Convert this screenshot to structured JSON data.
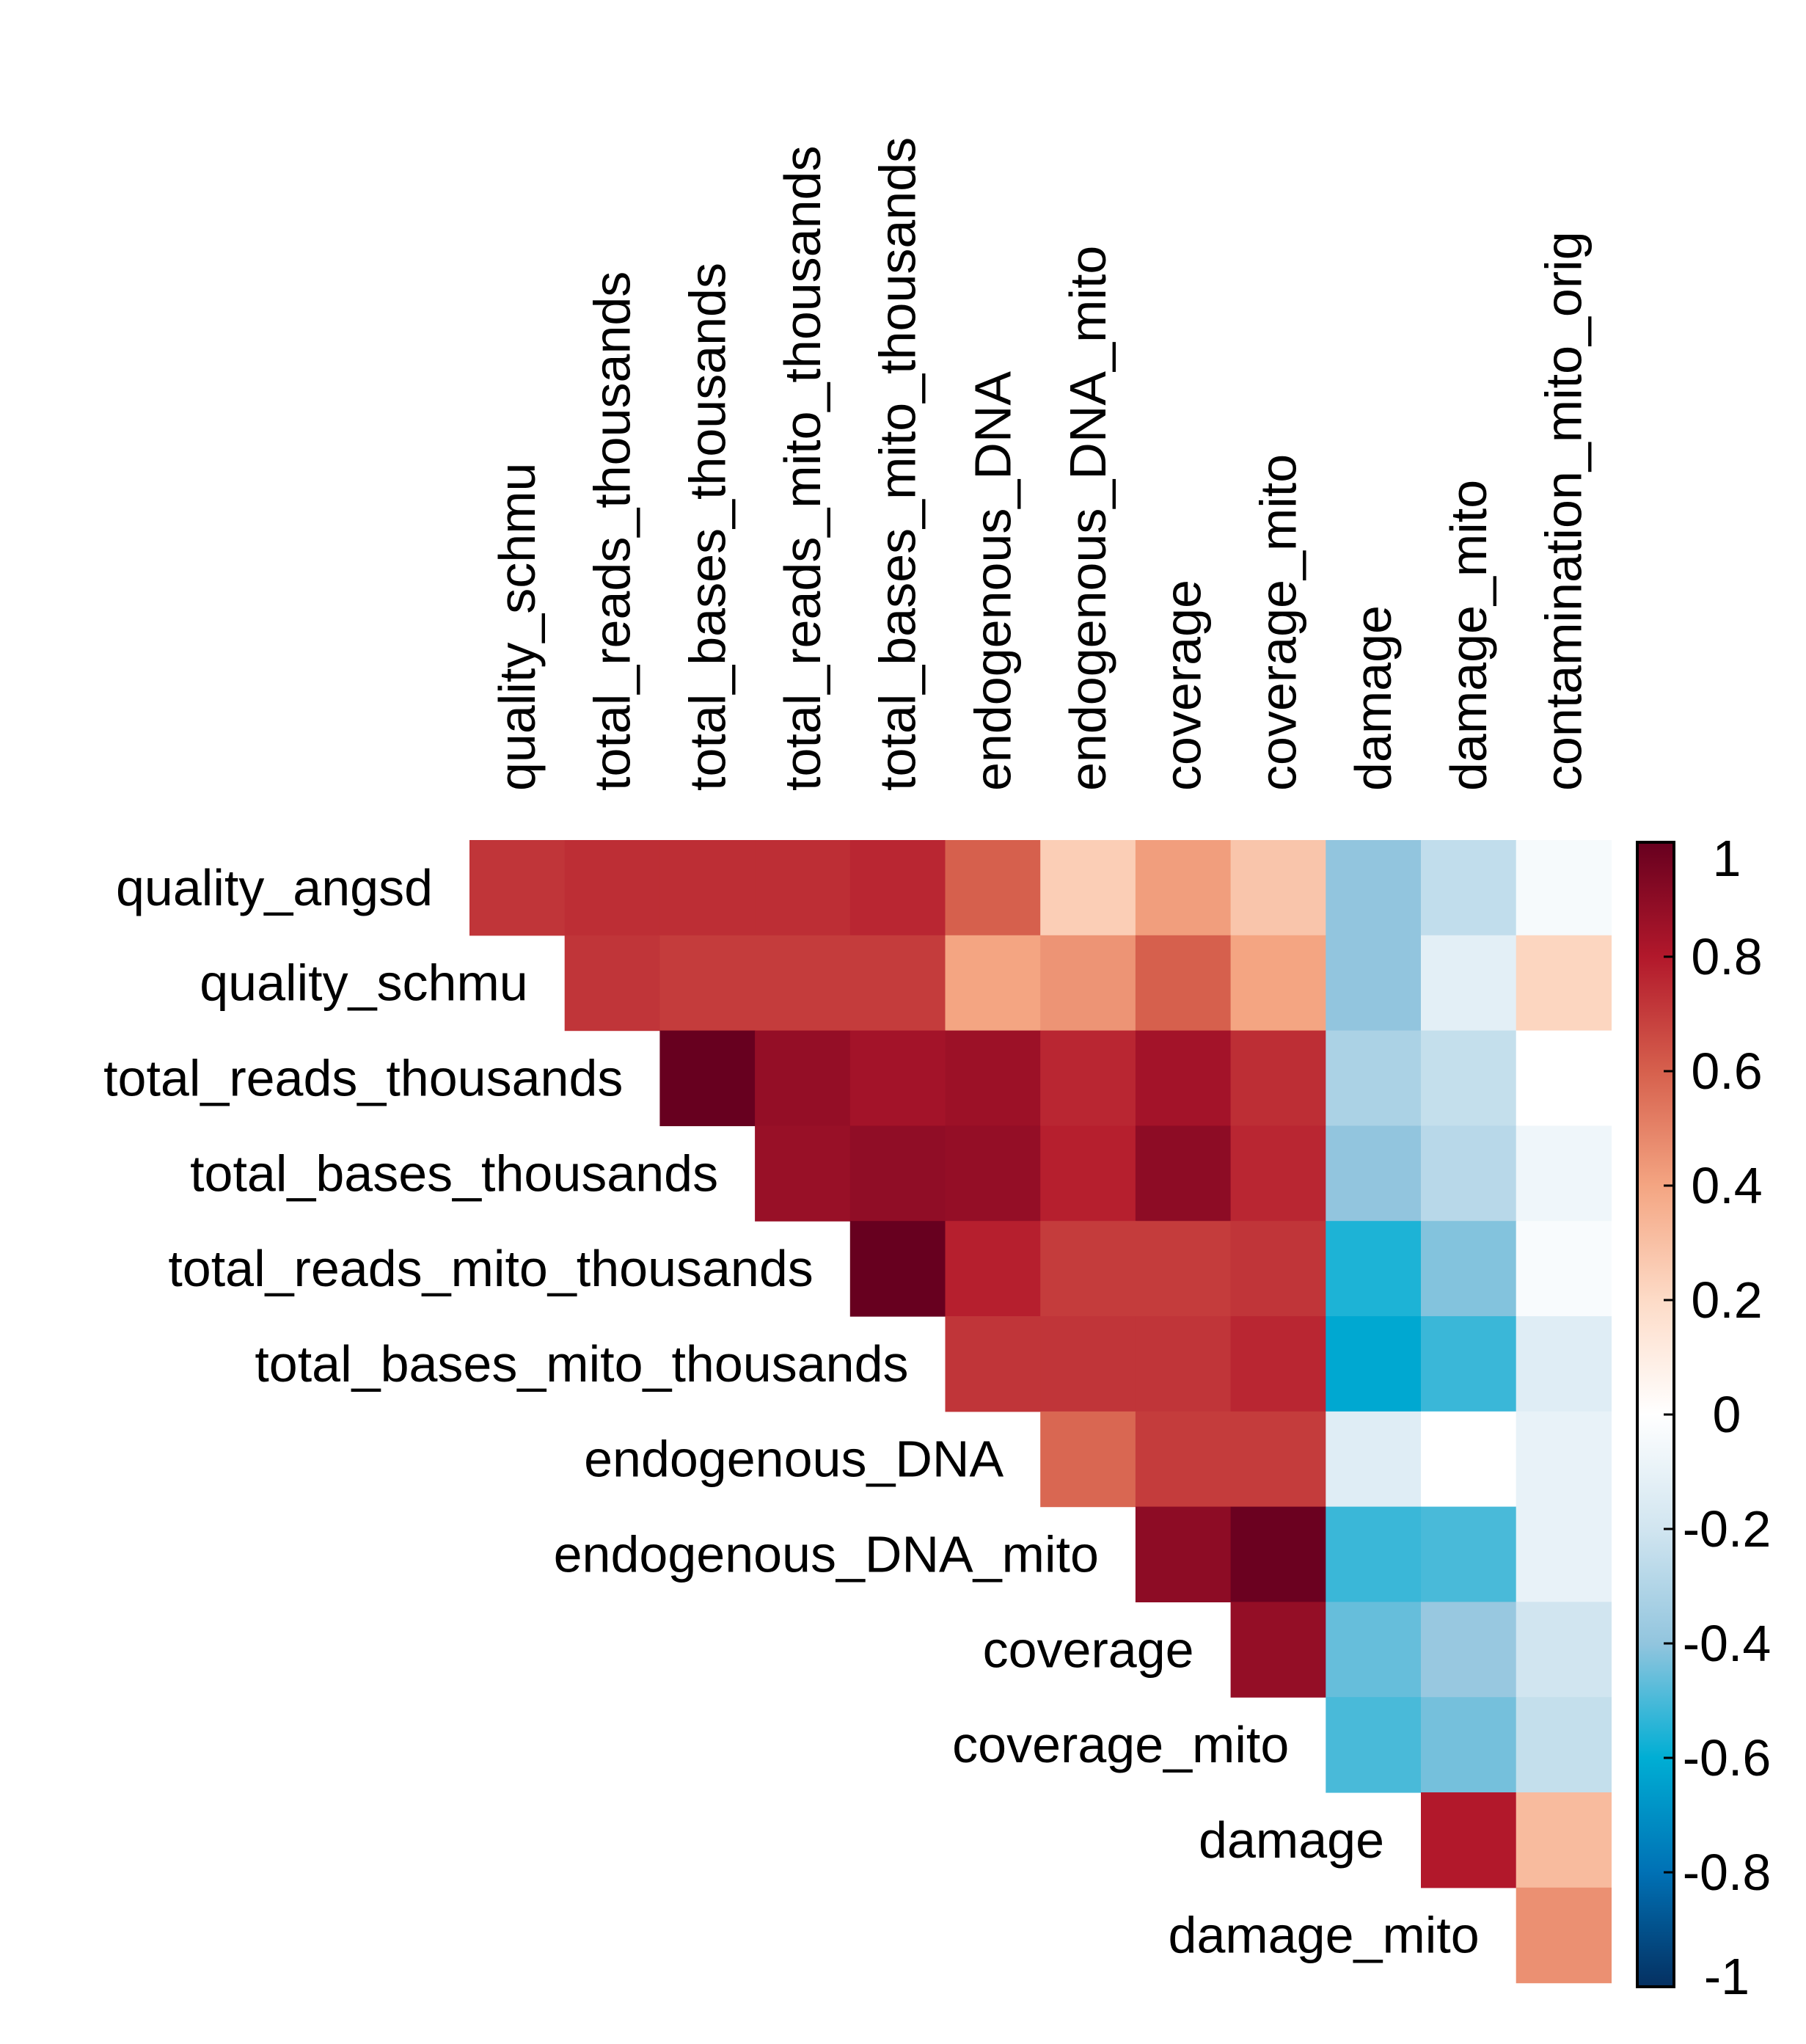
{
  "chart_data": {
    "type": "heatmap",
    "layout": "upper-triangle-without-diagonal",
    "row_labels": [
      "quality_angsd",
      "quality_schmu",
      "total_reads_thousands",
      "total_bases_thousands",
      "total_reads_mito_thousands",
      "total_bases_mito_thousands",
      "endogenous_DNA",
      "endogenous_DNA_mito",
      "coverage",
      "coverage_mito",
      "damage",
      "damage_mito"
    ],
    "column_labels": [
      "quality_schmu",
      "total_reads_thousands",
      "total_bases_thousands",
      "total_reads_mito_thousands",
      "total_bases_mito_thousands",
      "endogenous_DNA",
      "endogenous_DNA_mito",
      "coverage",
      "coverage_mito",
      "damage",
      "damage_mito",
      "contamination_mito_orig"
    ],
    "values": [
      [
        0.72,
        0.74,
        0.74,
        0.74,
        0.76,
        0.6,
        0.25,
        0.42,
        0.28,
        -0.4,
        -0.25,
        -0.04
      ],
      [
        null,
        0.72,
        0.7,
        0.7,
        0.7,
        0.4,
        0.45,
        0.6,
        0.4,
        -0.4,
        -0.12,
        0.22
      ],
      [
        null,
        null,
        1.0,
        0.88,
        0.84,
        0.86,
        0.76,
        0.84,
        0.74,
        -0.32,
        -0.24,
        0.0
      ],
      [
        null,
        null,
        null,
        0.87,
        0.89,
        0.88,
        0.78,
        0.9,
        0.76,
        -0.4,
        -0.28,
        -0.07
      ],
      [
        null,
        null,
        null,
        null,
        1.0,
        0.78,
        0.7,
        0.7,
        0.72,
        -0.56,
        -0.42,
        -0.03
      ],
      [
        null,
        null,
        null,
        null,
        null,
        0.72,
        0.72,
        0.72,
        0.76,
        -0.62,
        -0.52,
        -0.14
      ],
      [
        null,
        null,
        null,
        null,
        null,
        null,
        0.58,
        0.7,
        0.7,
        -0.14,
        0.0,
        -0.1
      ],
      [
        null,
        null,
        null,
        null,
        null,
        null,
        null,
        0.9,
        0.99,
        -0.52,
        -0.5,
        -0.1
      ],
      [
        null,
        null,
        null,
        null,
        null,
        null,
        null,
        null,
        0.88,
        -0.46,
        -0.38,
        -0.2
      ],
      [
        null,
        null,
        null,
        null,
        null,
        null,
        null,
        null,
        null,
        -0.5,
        -0.44,
        -0.24
      ],
      [
        null,
        null,
        null,
        null,
        null,
        null,
        null,
        null,
        null,
        null,
        0.8,
        0.32
      ],
      [
        null,
        null,
        null,
        null,
        null,
        null,
        null,
        null,
        null,
        null,
        null,
        0.46
      ]
    ],
    "colorbar": {
      "range": [
        -1,
        1
      ],
      "tick_labels": [
        "1",
        "0.8",
        "0.6",
        "0.4",
        "0.2",
        "0",
        "-0.2",
        "-0.4",
        "-0.6",
        "-0.8",
        "-1"
      ],
      "colors": [
        "#67001F",
        "#B2182B",
        "#D6604D",
        "#F4A582",
        "#FDDBC7",
        "#FFFFFF",
        "#D1E5F0",
        "#92C5DE",
        "#00AED4",
        "#0071B5",
        "#053061"
      ]
    }
  }
}
